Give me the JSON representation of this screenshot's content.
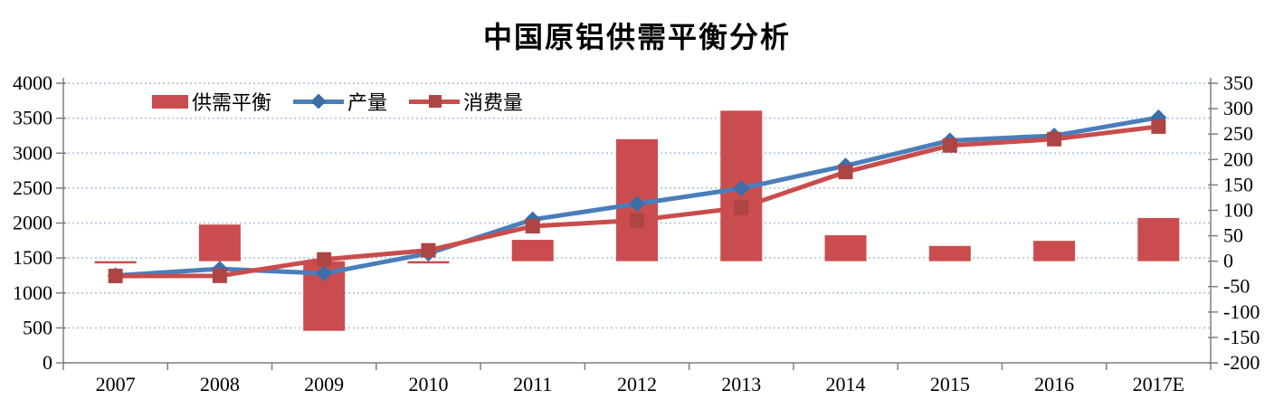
{
  "title": "中国原铝供需平衡分析",
  "colors": {
    "bar_red": "#CB4C4E",
    "line_red": "#C94D4B",
    "marker_red": "#AC4543",
    "line_blue": "#4A7EBB",
    "marker_blue": "#3E6EA8",
    "grid": "#B9CDE5",
    "axis": "#7F7F7F",
    "text": "#000000"
  },
  "chart_data": {
    "type": "combo-bar-line",
    "title": "中国原铝供需平衡分析",
    "categories": [
      "2007",
      "2008",
      "2009",
      "2010",
      "2011",
      "2012",
      "2013",
      "2014",
      "2015",
      "2016",
      "2017E"
    ],
    "series": [
      {
        "name": "供需平衡",
        "type": "bar",
        "axis": "right",
        "marker": "none",
        "values": [
          -2,
          72,
          -137,
          -3,
          42,
          240,
          296,
          51,
          30,
          40,
          85
        ]
      },
      {
        "name": "产量",
        "type": "line",
        "axis": "left",
        "marker": "diamond",
        "values": [
          1250,
          1345,
          1280,
          1565,
          2050,
          2275,
          2495,
          2820,
          3180,
          3250,
          3510
        ]
      },
      {
        "name": "消费量",
        "type": "line",
        "axis": "left",
        "marker": "square",
        "values": [
          1243,
          1245,
          1480,
          1610,
          1955,
          2040,
          2220,
          2730,
          3110,
          3200,
          3380
        ]
      }
    ],
    "left_axis": {
      "min": 0,
      "max": 4000,
      "step": 500,
      "ticks": [
        "0",
        "500",
        "1000",
        "1500",
        "2000",
        "2500",
        "3000",
        "3500",
        "4000"
      ]
    },
    "right_axis": {
      "min": -200,
      "max": 350,
      "step": 50,
      "ticks": [
        "-200",
        "-150",
        "-100",
        "-50",
        "0",
        "50",
        "100",
        "150",
        "200",
        "250",
        "300",
        "350"
      ]
    },
    "grid": "dotted-horizontal",
    "legend_position": "top-left-inset"
  }
}
